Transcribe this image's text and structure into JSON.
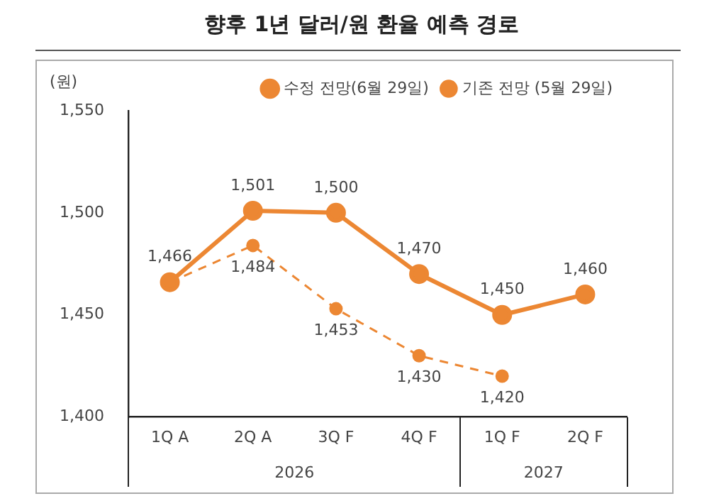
{
  "chart_data": {
    "type": "line",
    "title": "향후 1년 달러/원 환율 예측 경로",
    "ylabel": "(원)",
    "categories": [
      "1Q A",
      "2Q A",
      "3Q F",
      "4Q F",
      "1Q F",
      "2Q F"
    ],
    "series": [
      {
        "name": "수정 전망(6월 29일)",
        "color": "#ec8733",
        "line_style": "solid",
        "values": [
          1466,
          1501,
          1500,
          1470,
          1450,
          1460
        ],
        "value_labels": [
          "1,466",
          "1,501",
          "1,500",
          "1,470",
          "1,450",
          "1,460"
        ]
      },
      {
        "name": "기존 전망 (5월 29일)",
        "color": "#ec8733",
        "line_style": "dashed",
        "values": [
          1466,
          1484,
          1453,
          1430,
          1420,
          null
        ],
        "value_labels": [
          null,
          "1,484",
          "1,453",
          "1,430",
          "1,420",
          null
        ]
      }
    ],
    "ylim": [
      1400,
      1550
    ],
    "yticks": [
      {
        "value": 1400,
        "label": "1,400"
      },
      {
        "value": 1450,
        "label": "1,450"
      },
      {
        "value": 1500,
        "label": "1,500"
      },
      {
        "value": 1550,
        "label": "1,550"
      }
    ],
    "annotations": [
      "2026",
      "2027"
    ],
    "grid": false,
    "legend": "top",
    "marker": "circle"
  }
}
